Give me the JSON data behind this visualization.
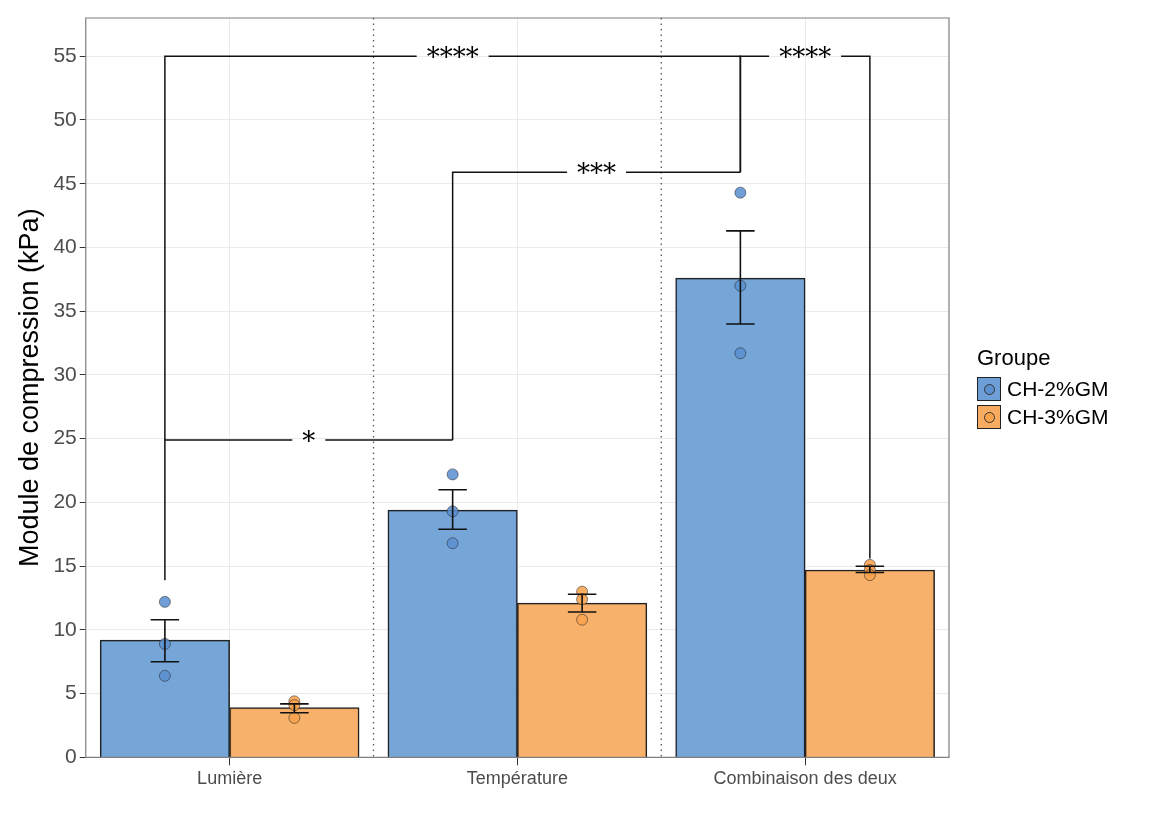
{
  "chart_data": {
    "type": "bar",
    "categories": [
      "Lumière",
      "Température",
      "Combinaison des deux"
    ],
    "series": [
      {
        "name": "CH-2%GM",
        "color": "#6d9fd6",
        "values": [
          9.2,
          19.4,
          37.6
        ],
        "errors": [
          [
            7.5,
            10.8
          ],
          [
            17.9,
            21.0
          ],
          [
            34.0,
            41.3
          ]
        ]
      },
      {
        "name": "CH-3%GM",
        "color": "#f8ac61",
        "values": [
          3.9,
          12.1,
          14.7
        ],
        "errors": [
          [
            3.5,
            4.2
          ],
          [
            11.4,
            12.8
          ],
          [
            14.5,
            15.0
          ]
        ]
      },
      {
        "type": "scatter",
        "color": "#5b8fd0",
        "x": [
          "Lumière",
          "Lumière",
          "Lumière",
          "Température",
          "Température",
          "Température",
          "Combinaison des deux",
          "Combinaison des deux",
          "Combinaison des deux"
        ],
        "values": [
          12.2,
          8.9,
          6.4,
          22.2,
          19.3,
          16.8,
          44.3,
          37.0,
          31.7
        ]
      },
      {
        "type": "scatter",
        "color": "#f8a24c",
        "x": [
          "Lumière",
          "Lumière",
          "Lumière",
          "Température",
          "Température",
          "Température",
          "Combinaison des deux",
          "Combinaison des deux",
          "Combinaison des deux"
        ],
        "values": [
          4.4,
          4.1,
          3.1,
          13.0,
          12.4,
          10.8,
          15.1,
          14.7,
          14.3
        ]
      }
    ],
    "ylabel": "Module de compression (kPa)",
    "legend_title": "Groupe",
    "legend": "right",
    "ylim": [
      0,
      58
    ],
    "yticks": [
      0,
      5,
      10,
      15,
      20,
      25,
      30,
      35,
      40,
      45,
      50,
      55
    ],
    "grid": true,
    "marker": "circle",
    "annotations": [
      "****",
      "****",
      "***",
      "*"
    ]
  }
}
